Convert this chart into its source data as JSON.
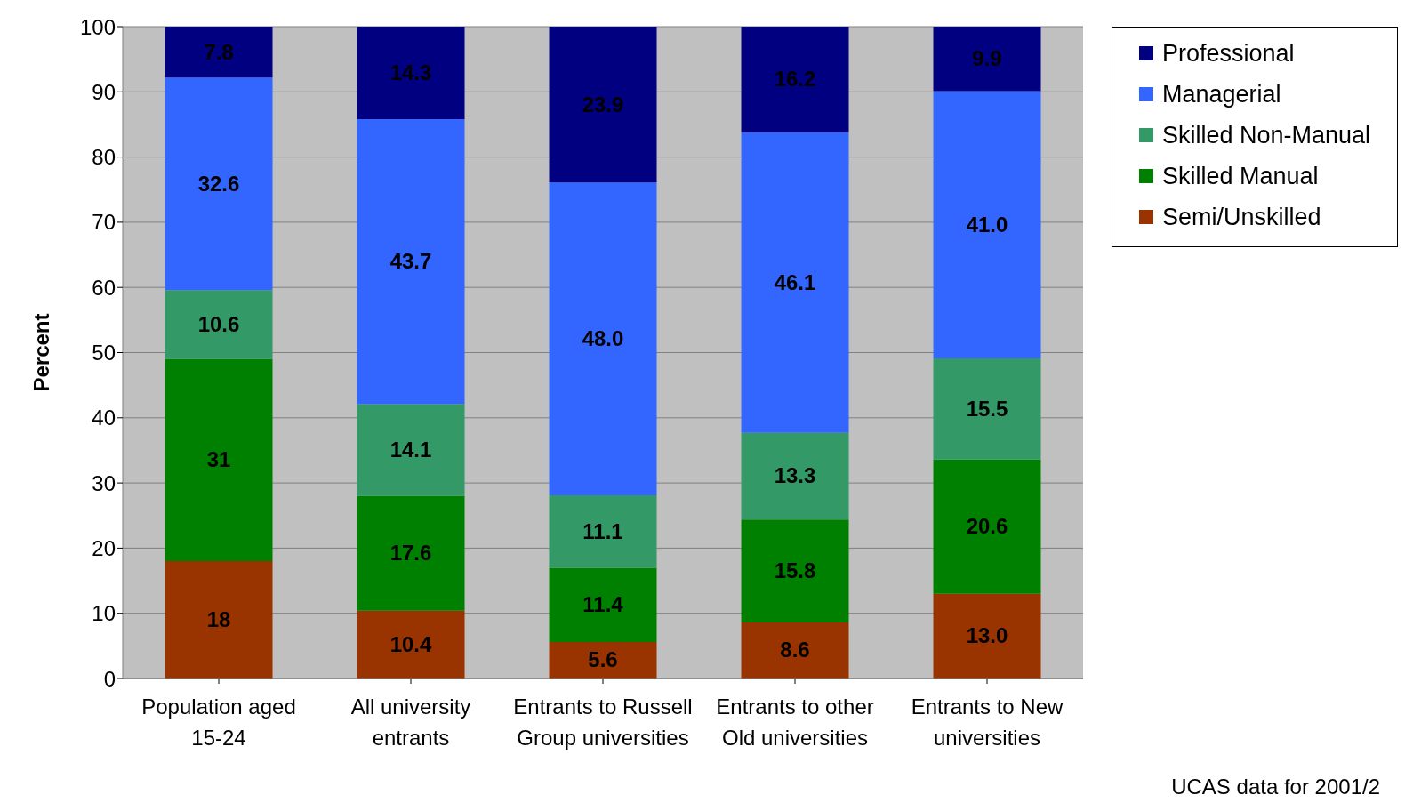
{
  "chart_data": {
    "type": "bar",
    "stacked": true,
    "categories": [
      "Population aged 15-24",
      "All university entrants",
      "Entrants to Russell Group universities",
      "Entrants to other Old universities",
      "Entrants to New universities"
    ],
    "series": [
      {
        "name": "Semi/Unskilled",
        "color": "#993300",
        "values": [
          18,
          10.4,
          5.6,
          8.6,
          13.0
        ],
        "value_labels": [
          "18",
          "10.4",
          "5.6",
          "8.6",
          "13.0"
        ]
      },
      {
        "name": "Skilled Manual",
        "color": "#008000",
        "values": [
          31,
          17.6,
          11.4,
          15.8,
          20.6
        ],
        "value_labels": [
          "31",
          "17.6",
          "11.4",
          "15.8",
          "20.6"
        ]
      },
      {
        "name": "Skilled Non-Manual",
        "color": "#339966",
        "values": [
          10.6,
          14.1,
          11.1,
          13.3,
          15.5
        ],
        "value_labels": [
          "10.6",
          "14.1",
          "11.1",
          "13.3",
          "15.5"
        ]
      },
      {
        "name": "Managerial",
        "color": "#3366ff",
        "values": [
          32.6,
          43.7,
          48.0,
          46.1,
          41.0
        ],
        "value_labels": [
          "32.6",
          "43.7",
          "48.0",
          "46.1",
          "41.0"
        ]
      },
      {
        "name": "Professional",
        "color": "#000080",
        "values": [
          7.8,
          14.3,
          23.9,
          16.2,
          9.9
        ],
        "value_labels": [
          "7.8",
          "14.3",
          "23.9",
          "16.2",
          "9.9"
        ]
      }
    ],
    "ylabel": "Percent",
    "ylim": [
      0,
      100
    ],
    "yticks": [
      0,
      10,
      20,
      30,
      40,
      50,
      60,
      70,
      80,
      90,
      100
    ],
    "grid": "y",
    "legend": "top right",
    "annotations": [
      "UCAS data for 2001/2"
    ]
  }
}
